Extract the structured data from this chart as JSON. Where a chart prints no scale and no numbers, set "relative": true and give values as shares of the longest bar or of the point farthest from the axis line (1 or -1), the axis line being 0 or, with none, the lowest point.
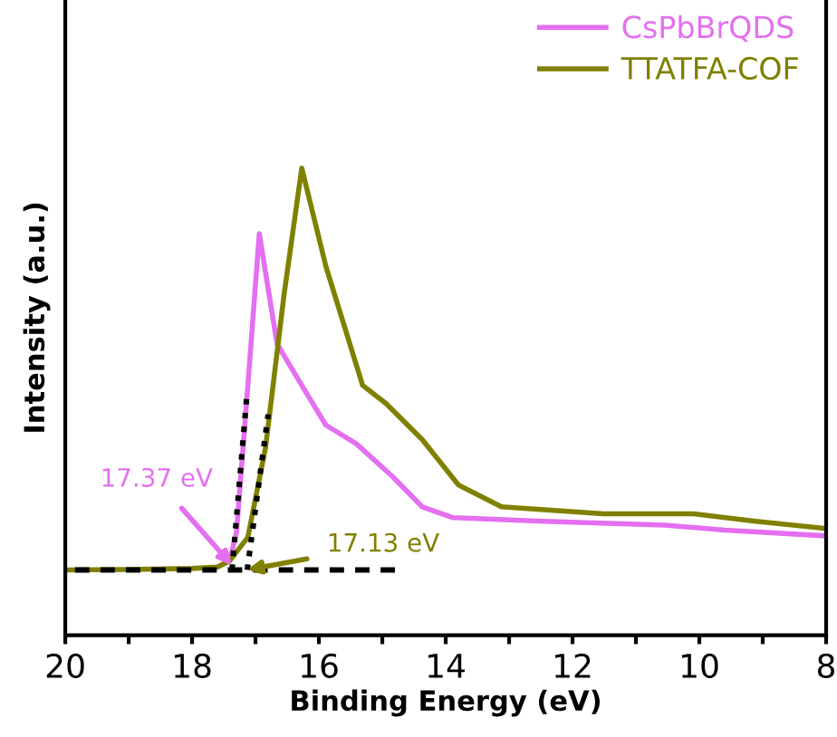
{
  "chart_data": {
    "type": "line",
    "xlabel": "Binding Energy (eV)",
    "ylabel": "Intensity (a.u.)",
    "relative": true,
    "xlim": [
      20,
      8
    ],
    "xticks": [
      20,
      {
        "value": 19,
        "label": null
      },
      18,
      {
        "value": 17,
        "label": null
      },
      16,
      {
        "value": 15,
        "label": null
      },
      14,
      {
        "value": 13,
        "label": null
      },
      12,
      {
        "value": 11,
        "label": null
      },
      10,
      {
        "value": 9,
        "label": null
      },
      8
    ],
    "legend": "top right",
    "grid": false,
    "marker": "none",
    "series": [
      {
        "name": "CsPbBrQDS",
        "color": "#e46ff0",
        "x": [
          17.6,
          17.41,
          17.3,
          17.12,
          16.94,
          16.66,
          16.27,
          15.89,
          15.41,
          14.84,
          14.37,
          13.89,
          12.46,
          10.54,
          9.6,
          8.03
        ],
        "values": [
          0.146,
          0.159,
          0.22,
          0.535,
          0.86,
          0.624,
          0.535,
          0.45,
          0.41,
          0.34,
          0.275,
          0.252,
          0.244,
          0.236,
          0.225,
          0.213
        ]
      },
      {
        "name": "TTATFA-COF",
        "color": "#808000",
        "x": [
          20,
          19,
          18,
          17.6,
          17.41,
          17.12,
          16.84,
          16.55,
          16.27,
          15.89,
          15.31,
          14.94,
          14.37,
          13.8,
          13.12,
          11.51,
          10.09,
          9.11,
          8.03
        ],
        "values": [
          0.14,
          0.141,
          0.143,
          0.146,
          0.159,
          0.21,
          0.403,
          0.729,
          1.0,
          0.79,
          0.535,
          0.496,
          0.419,
          0.322,
          0.275,
          0.26,
          0.26,
          0.244,
          0.229
        ]
      },
      {
        "type": "line",
        "color": "#000000",
        "line_style": "dotted",
        "x": [
          17.37,
          17.14
        ],
        "values": [
          0.14,
          0.508
        ]
      },
      {
        "type": "line",
        "color": "#000000",
        "line_style": "dotted",
        "x": [
          17.13,
          16.8
        ],
        "values": [
          0.14,
          0.473
        ]
      },
      {
        "type": "line",
        "color": "#000000",
        "line_style": "dashed",
        "x": [
          14.8,
          20
        ],
        "values": [
          0.14,
          0.14
        ]
      }
    ],
    "annotations": [
      {
        "text": "17.37 eV",
        "x": 17.37,
        "y": 0.15
      },
      {
        "text": "17.13 eV",
        "x": 17.13,
        "y": 0.14
      }
    ]
  }
}
